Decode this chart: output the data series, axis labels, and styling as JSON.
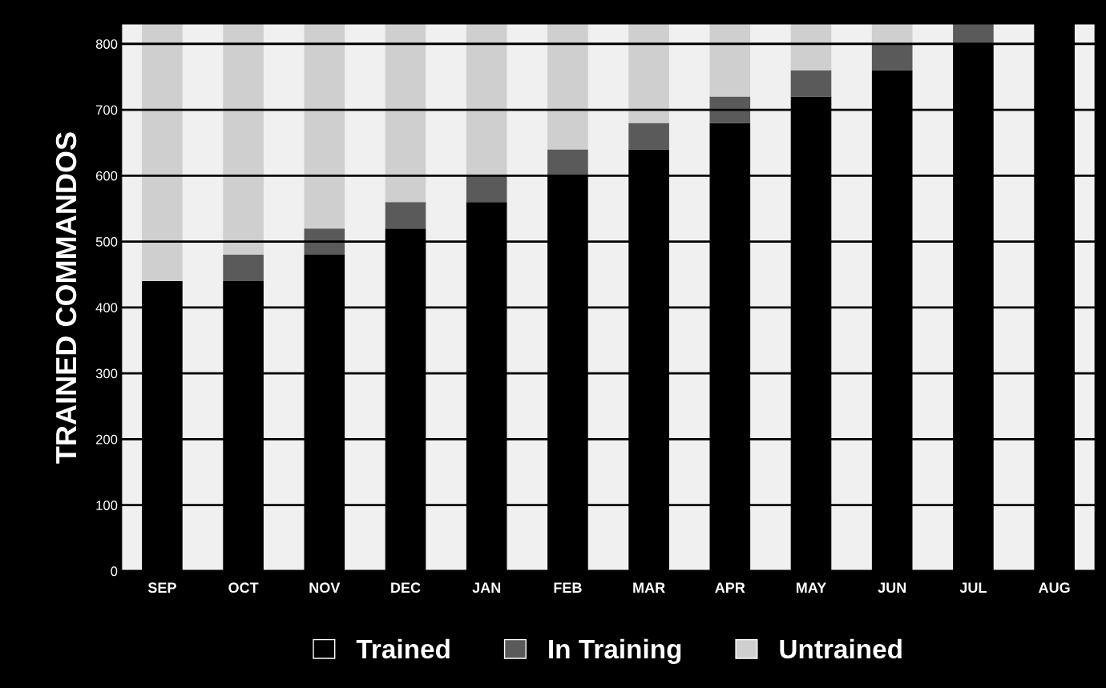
{
  "chart_data": {
    "type": "bar",
    "stacked": true,
    "ylabel": "TRAINED COMMANDOS",
    "categories": [
      "SEP",
      "OCT",
      "NOV",
      "DEC",
      "JAN",
      "FEB",
      "MAR",
      "APR",
      "MAY",
      "JUN",
      "JUL",
      "AUG"
    ],
    "series": [
      {
        "name": "Trained",
        "color": "#000000",
        "values": [
          440,
          440,
          480,
          520,
          560,
          600,
          640,
          680,
          720,
          760,
          800,
          830
        ]
      },
      {
        "name": "In Training",
        "color": "#5a5a5a",
        "values": [
          0,
          40,
          40,
          40,
          40,
          40,
          40,
          40,
          40,
          40,
          30,
          0
        ]
      },
      {
        "name": "Untrained",
        "color": "#cfcfcf",
        "values": [
          390,
          350,
          310,
          270,
          230,
          190,
          150,
          110,
          70,
          30,
          0,
          0
        ]
      }
    ],
    "ylim": [
      0,
      830
    ],
    "yticks": [
      0,
      100,
      200,
      300,
      400,
      500,
      600,
      700,
      800
    ],
    "grid": "y",
    "legend": "bottom"
  }
}
